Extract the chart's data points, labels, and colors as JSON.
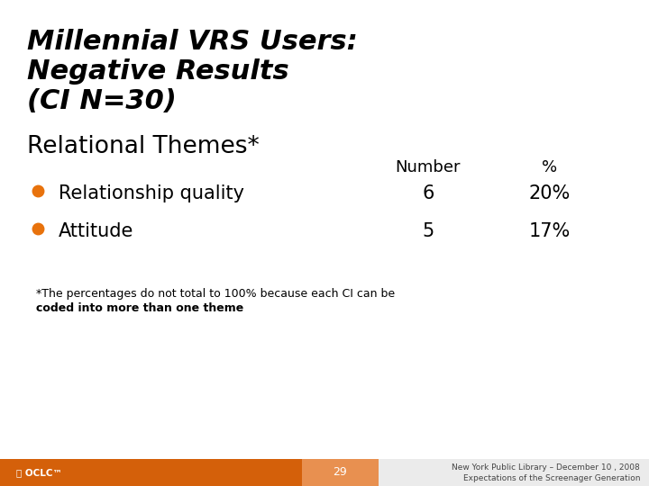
{
  "title_line1": "Millennial VRS Users:",
  "title_line2": "Negative Results",
  "title_line3": "(CI N=30)",
  "section_header": "Relational Themes*",
  "col_header_number": "Number",
  "col_header_pct": "%",
  "bullets": [
    {
      "label": "Relationship quality",
      "number": "6",
      "pct": "20%"
    },
    {
      "label": "Attitude",
      "number": "5",
      "pct": "17%"
    }
  ],
  "footnote_line1": "*The percentages do not total to 100% because each CI can be",
  "footnote_line2": "coded into more than one theme",
  "footer_page": "29",
  "footer_right1": "New York Public Library – December 10 , 2008",
  "footer_right2": "Expectations of the Screenager Generation",
  "bullet_color": "#E8720C",
  "bg_color": "#FFFFFF",
  "title_color": "#000000",
  "text_color": "#000000",
  "footer_orange_color": "#D4600A",
  "footer_mid_color": "#E89050",
  "footer_gray_color": "#EBEBEB"
}
